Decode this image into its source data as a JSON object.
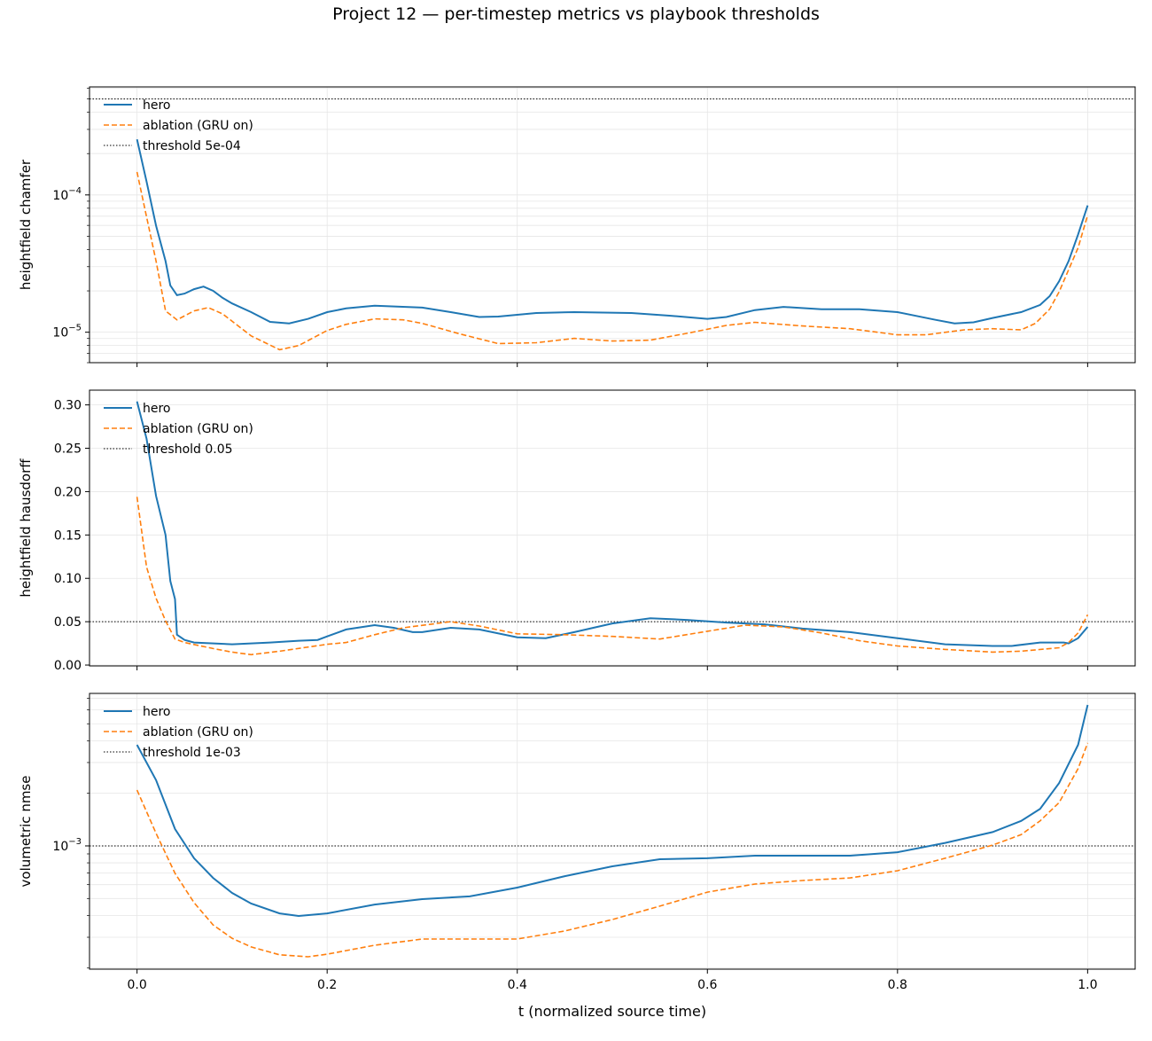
{
  "title": "Project 12 — per-timestep metrics vs playbook thresholds",
  "xlabel": "t (normalized source time)",
  "colors": {
    "hero": "#1f77b4",
    "ablation": "#ff7f0e",
    "threshold": "#000000",
    "grid": "#e6e6e6"
  },
  "chart_data": [
    {
      "type": "line",
      "ylabel": "heightfield chamfer",
      "yscale": "log",
      "xlim": [
        -0.05,
        1.05
      ],
      "ylim": [
        6e-06,
        0.000612
      ],
      "xticks": [
        0,
        0.2,
        0.4,
        0.6,
        0.8,
        1.0
      ],
      "yticks": [
        {
          "value": 1e-05,
          "label": "10^-5"
        },
        {
          "value": 0.0001,
          "label": "10^-4"
        }
      ],
      "grid": true,
      "legend_position": "top-left",
      "threshold": {
        "name": "threshold 5e-04",
        "value": 0.0005
      },
      "series": [
        {
          "name": "hero",
          "style": "solid",
          "x": [
            0,
            0.01,
            0.02,
            0.03,
            0.035,
            0.042,
            0.05,
            0.06,
            0.07,
            0.08,
            0.09,
            0.1,
            0.12,
            0.14,
            0.16,
            0.18,
            0.2,
            0.22,
            0.25,
            0.3,
            0.33,
            0.36,
            0.38,
            0.42,
            0.46,
            0.52,
            0.56,
            0.6,
            0.62,
            0.65,
            0.68,
            0.72,
            0.76,
            0.8,
            0.84,
            0.86,
            0.88,
            0.9,
            0.93,
            0.95,
            0.96,
            0.97,
            0.98,
            0.99,
            1.0
          ],
          "y": [
            0.000254,
            0.000125,
            5.97e-05,
            3.3e-05,
            2.19e-05,
            1.86e-05,
            1.91e-05,
            2.06e-05,
            2.15e-05,
            2e-05,
            1.78e-05,
            1.62e-05,
            1.4e-05,
            1.19e-05,
            1.16e-05,
            1.25e-05,
            1.4e-05,
            1.49e-05,
            1.56e-05,
            1.51e-05,
            1.4e-05,
            1.29e-05,
            1.3e-05,
            1.38e-05,
            1.4e-05,
            1.38e-05,
            1.32e-05,
            1.25e-05,
            1.29e-05,
            1.45e-05,
            1.53e-05,
            1.47e-05,
            1.47e-05,
            1.4e-05,
            1.23e-05,
            1.16e-05,
            1.18e-05,
            1.27e-05,
            1.4e-05,
            1.58e-05,
            1.83e-05,
            2.35e-05,
            3.3e-05,
            5.15e-05,
            8.38e-05
          ]
        },
        {
          "name": "ablation (GRU on)",
          "style": "dashed",
          "x": [
            0,
            0.01,
            0.02,
            0.03,
            0.042,
            0.06,
            0.075,
            0.09,
            0.12,
            0.15,
            0.17,
            0.2,
            0.22,
            0.25,
            0.28,
            0.3,
            0.34,
            0.38,
            0.42,
            0.46,
            0.5,
            0.54,
            0.58,
            0.62,
            0.65,
            0.7,
            0.75,
            0.8,
            0.83,
            0.87,
            0.9,
            0.93,
            0.945,
            0.96,
            0.97,
            0.98,
            0.99,
            1.0
          ],
          "y": [
            0.000147,
            6.92e-05,
            3.3e-05,
            1.43e-05,
            1.23e-05,
            1.43e-05,
            1.51e-05,
            1.36e-05,
            9.4e-06,
            7.45e-06,
            8e-06,
            1.03e-05,
            1.14e-05,
            1.25e-05,
            1.23e-05,
            1.16e-05,
            9.7e-06,
            8.26e-06,
            8.38e-06,
            9.02e-06,
            8.63e-06,
            8.75e-06,
            9.86e-06,
            1.12e-05,
            1.18e-05,
            1.11e-05,
            1.06e-05,
            9.57e-06,
            9.57e-06,
            1.04e-05,
            1.06e-05,
            1.04e-05,
            1.16e-05,
            1.47e-05,
            1.97e-05,
            2.85e-05,
            4.12e-05,
            7.13e-05
          ]
        }
      ]
    },
    {
      "type": "line",
      "ylabel": "heightfield hausdorff",
      "yscale": "linear",
      "xlim": [
        -0.05,
        1.05
      ],
      "ylim": [
        -0.001,
        0.317
      ],
      "xticks": [
        0,
        0.2,
        0.4,
        0.6,
        0.8,
        1.0
      ],
      "yticks": [
        {
          "value": 0,
          "label": "0.00"
        },
        {
          "value": 0.05,
          "label": "0.05"
        },
        {
          "value": 0.1,
          "label": "0.10"
        },
        {
          "value": 0.15,
          "label": "0.15"
        },
        {
          "value": 0.2,
          "label": "0.20"
        },
        {
          "value": 0.25,
          "label": "0.25"
        },
        {
          "value": 0.3,
          "label": "0.30"
        }
      ],
      "grid": true,
      "legend_position": "top-left",
      "threshold": {
        "name": "threshold 0.05",
        "value": 0.05
      },
      "series": [
        {
          "name": "hero",
          "style": "solid",
          "x": [
            0,
            0.01,
            0.02,
            0.03,
            0.035,
            0.04,
            0.042,
            0.05,
            0.06,
            0.1,
            0.14,
            0.17,
            0.19,
            0.2,
            0.22,
            0.25,
            0.27,
            0.29,
            0.3,
            0.33,
            0.36,
            0.4,
            0.43,
            0.46,
            0.5,
            0.54,
            0.58,
            0.62,
            0.66,
            0.7,
            0.75,
            0.8,
            0.85,
            0.9,
            0.92,
            0.95,
            0.975,
            0.98,
            0.99,
            1.0
          ],
          "y": [
            0.304,
            0.261,
            0.195,
            0.15,
            0.097,
            0.076,
            0.035,
            0.029,
            0.026,
            0.024,
            0.026,
            0.028,
            0.029,
            0.033,
            0.041,
            0.046,
            0.043,
            0.038,
            0.038,
            0.043,
            0.041,
            0.032,
            0.031,
            0.038,
            0.048,
            0.054,
            0.052,
            0.049,
            0.047,
            0.042,
            0.038,
            0.031,
            0.024,
            0.022,
            0.022,
            0.026,
            0.026,
            0.025,
            0.031,
            0.044
          ]
        },
        {
          "name": "ablation (GRU on)",
          "style": "dashed",
          "x": [
            0,
            0.01,
            0.02,
            0.03,
            0.04,
            0.05,
            0.08,
            0.1,
            0.12,
            0.15,
            0.2,
            0.22,
            0.25,
            0.28,
            0.33,
            0.36,
            0.4,
            0.45,
            0.5,
            0.55,
            0.6,
            0.64,
            0.68,
            0.72,
            0.76,
            0.8,
            0.85,
            0.9,
            0.93,
            0.97,
            0.98,
            0.99,
            1.0
          ],
          "y": [
            0.194,
            0.113,
            0.077,
            0.051,
            0.03,
            0.026,
            0.019,
            0.015,
            0.012,
            0.016,
            0.024,
            0.026,
            0.035,
            0.043,
            0.05,
            0.045,
            0.036,
            0.035,
            0.033,
            0.03,
            0.039,
            0.046,
            0.044,
            0.037,
            0.028,
            0.022,
            0.018,
            0.015,
            0.016,
            0.02,
            0.026,
            0.037,
            0.058
          ]
        }
      ]
    },
    {
      "type": "line",
      "ylabel": "volumetric nmse",
      "yscale": "log",
      "xlim": [
        -0.05,
        1.05
      ],
      "ylim": [
        0.000197,
        0.00746
      ],
      "xticks": [
        0,
        0.2,
        0.4,
        0.6,
        0.8,
        1.0
      ],
      "xtick_labels": [
        "0.0",
        "0.2",
        "0.4",
        "0.6",
        "0.8",
        "1.0"
      ],
      "yticks": [
        {
          "value": 0.001,
          "label": "10^-3"
        }
      ],
      "grid": true,
      "legend_position": "top-left",
      "threshold": {
        "name": "threshold 1e-03",
        "value": 0.001
      },
      "series": [
        {
          "name": "hero",
          "style": "solid",
          "x": [
            0,
            0.02,
            0.04,
            0.06,
            0.08,
            0.1,
            0.12,
            0.15,
            0.17,
            0.2,
            0.25,
            0.3,
            0.35,
            0.4,
            0.45,
            0.5,
            0.55,
            0.6,
            0.65,
            0.7,
            0.75,
            0.8,
            0.85,
            0.9,
            0.93,
            0.95,
            0.97,
            0.99,
            1.0
          ],
          "y": [
            0.00379,
            0.00238,
            0.00125,
            0.00085,
            0.000656,
            0.000538,
            0.000468,
            0.000411,
            0.000397,
            0.000411,
            0.000462,
            0.000496,
            0.000514,
            0.000577,
            0.000671,
            0.000764,
            0.000839,
            0.00085,
            0.000879,
            0.000879,
            0.000879,
            0.00092,
            0.00104,
            0.0012,
            0.00139,
            0.00163,
            0.00229,
            0.00379,
            0.00641
          ]
        },
        {
          "name": "ablation (GRU on)",
          "style": "dashed",
          "x": [
            0,
            0.02,
            0.04,
            0.06,
            0.08,
            0.1,
            0.12,
            0.15,
            0.18,
            0.2,
            0.25,
            0.3,
            0.35,
            0.4,
            0.45,
            0.5,
            0.55,
            0.6,
            0.65,
            0.7,
            0.75,
            0.8,
            0.85,
            0.9,
            0.93,
            0.95,
            0.97,
            0.99,
            1.0
          ],
          "y": [
            0.00209,
            0.00118,
            0.000697,
            0.000473,
            0.000353,
            0.000296,
            0.000264,
            0.000238,
            0.000232,
            0.00024,
            0.00027,
            0.000293,
            0.000293,
            0.000293,
            0.000326,
            0.000379,
            0.000452,
            0.000544,
            0.000605,
            0.000634,
            0.000656,
            0.000721,
            0.00085,
            0.00101,
            0.00116,
            0.00139,
            0.00177,
            0.00277,
            0.00388
          ]
        }
      ]
    }
  ]
}
